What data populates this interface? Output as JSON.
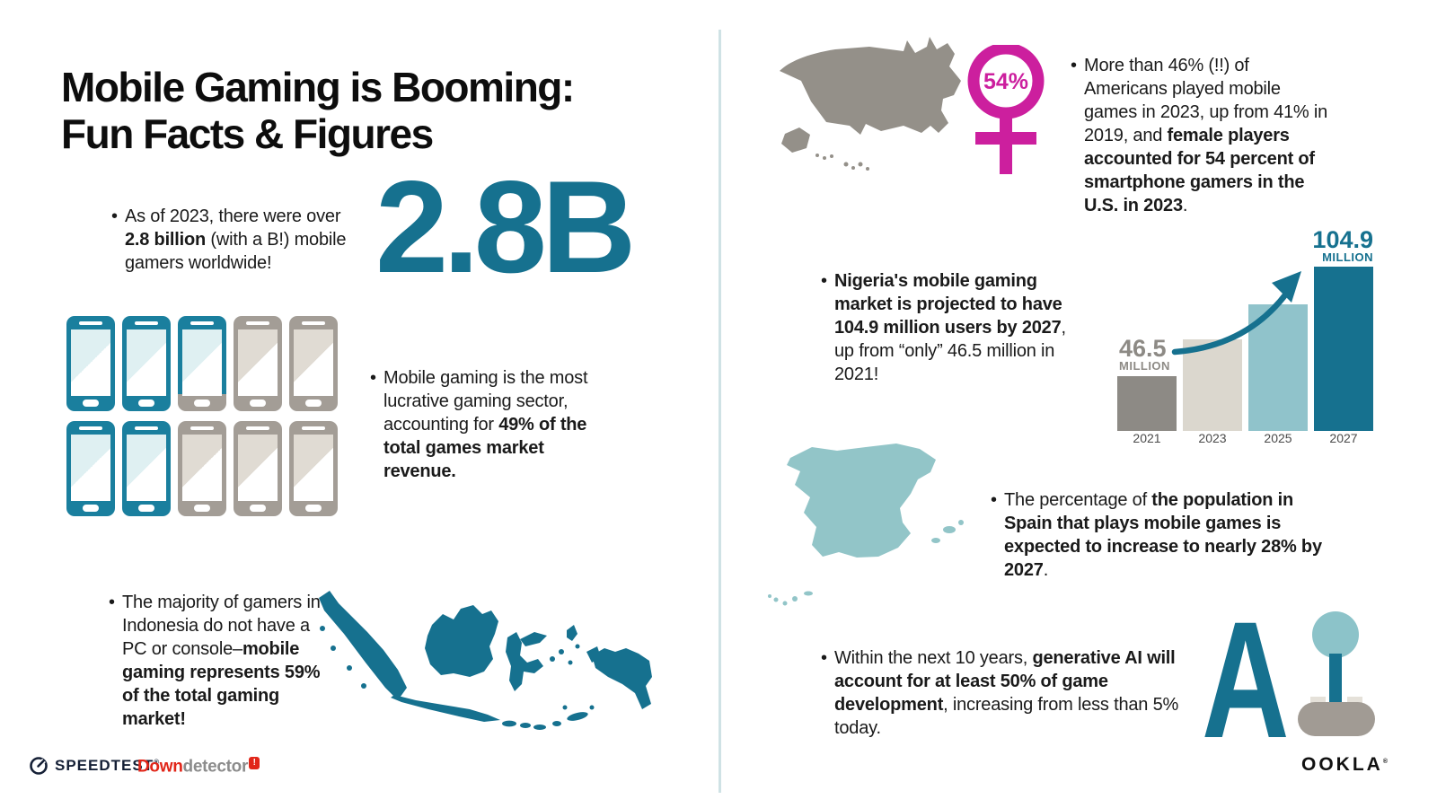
{
  "colors": {
    "teal_primary": "#16718f",
    "phone_teal": "#1a7f9e",
    "phone_gray": "#a39d96",
    "us_map_gray": "#949089",
    "magenta": "#cc1f9e",
    "spain_teal": "#92c5c8",
    "divider": "#cfe2e5"
  },
  "title": {
    "line1": "Mobile Gaming is Booming:",
    "line2": "Fun Facts & Figures"
  },
  "big_stat": "2.8B",
  "female_share": "54%",
  "bullets": {
    "gamers": {
      "segments": [
        {
          "text": "As of 2023, there were over "
        },
        {
          "text": "2.8 billion",
          "bold": true
        },
        {
          "text": " (with a B!) mobile gamers worldwide!"
        }
      ]
    },
    "revenue": {
      "segments": [
        {
          "text": "Mobile gaming is the most lucrative gaming sector, accounting for "
        },
        {
          "text": "49% of the total games market revenue.",
          "bold": true
        }
      ]
    },
    "indonesia": {
      "segments": [
        {
          "text": "The majority of gamers in Indonesia do not have a PC or console–"
        },
        {
          "text": "mobile gaming represents 59% of the total gaming market!",
          "bold": true
        }
      ]
    },
    "us": {
      "segments": [
        {
          "text": "More than 46% (!!) of Americans played mobile games in 2023, up from 41% in 2019, and "
        },
        {
          "text": "female players accounted for 54 percent of smartphone gamers in the U.S. in 2023",
          "bold": true
        },
        {
          "text": "."
        }
      ]
    },
    "nigeria": {
      "segments": [
        {
          "text": "Nigeria's mobile gaming market is projected to have 104.9 million users by 2027",
          "bold": true
        },
        {
          "text": ", up from “only” 46.5 million in 2021!"
        }
      ]
    },
    "spain": {
      "segments": [
        {
          "text": "The percentage of "
        },
        {
          "text": "the population in Spain that plays mobile games is expected to increase to nearly 28% by 2027",
          "bold": true
        },
        {
          "text": "."
        }
      ]
    },
    "ai": {
      "segments": [
        {
          "text": "Within the next 10 years, "
        },
        {
          "text": "generative AI will account for at least 50% of game development",
          "bold": true
        },
        {
          "text": ", increasing from less than 5% today."
        }
      ]
    }
  },
  "phones": {
    "states": [
      "teal",
      "teal",
      "partial",
      "gray",
      "gray",
      "teal",
      "teal",
      "gray",
      "gray",
      "gray"
    ]
  },
  "chart_data": {
    "type": "bar",
    "title": "",
    "categories": [
      "2021",
      "2023",
      "2025",
      "2027"
    ],
    "values": [
      46.5,
      66,
      85,
      104.9
    ],
    "unit": "million users",
    "ylim": [
      0,
      115
    ],
    "grid": false,
    "legend": false,
    "bar_colors": [
      "#8d8a85",
      "#dbd7ce",
      "#90c3cb",
      "#16718f"
    ],
    "annotations": [
      {
        "category": "2021",
        "label_value": "46.5",
        "label_unit": "MILLION",
        "color": "#8d8a85",
        "align": "left"
      },
      {
        "category": "2027",
        "label_value": "104.9",
        "label_unit": "MILLION",
        "color": "#16718f",
        "align": "right"
      }
    ]
  },
  "logos": {
    "speedtest": {
      "text": "SPEEDTEST",
      "mark": "®"
    },
    "downdetector": {
      "down": "Down",
      "rest": "detector",
      "badge": "!"
    },
    "ookla": {
      "text": "OOKLA",
      "mark": "®"
    }
  }
}
